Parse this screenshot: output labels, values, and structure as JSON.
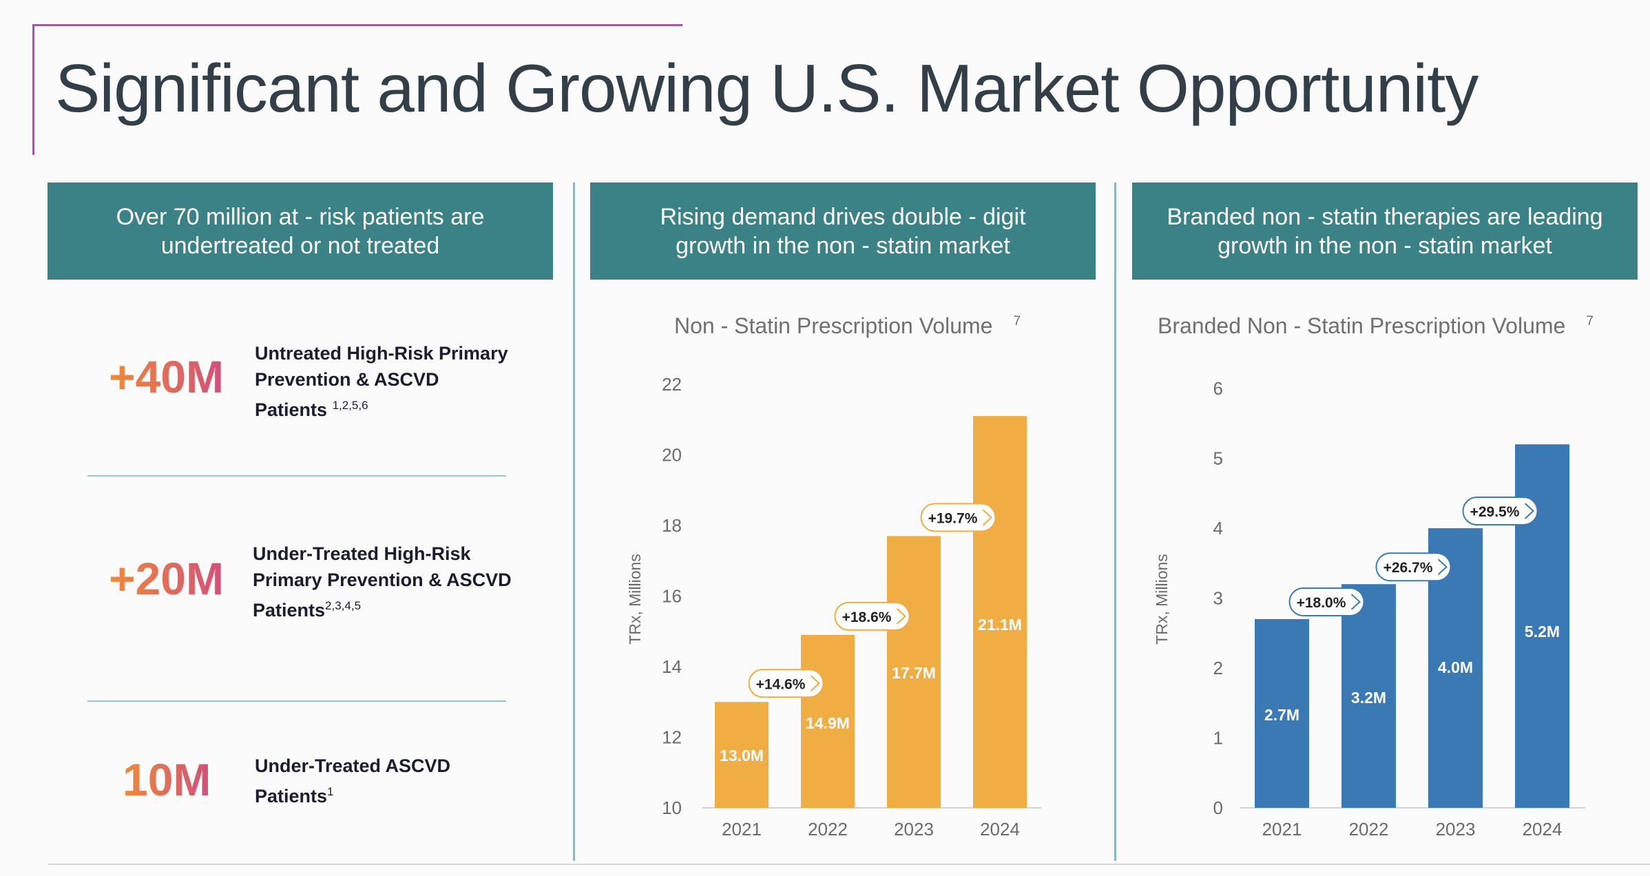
{
  "slide": {
    "title": "Significant and Growing U.S. Market Opportunity",
    "accent_color": "#c63ec4",
    "header_color": "#3b8287"
  },
  "panels": [
    {
      "header_line1": "Over 70 million at   - risk patients are",
      "header_line2": "undertreated or not treated"
    },
    {
      "header_line1": "Rising demand drives double     - digit",
      "header_line2": "growth in the non    - statin market"
    },
    {
      "header_line1": "Branded non  - statin therapies are leading",
      "header_line2": "growth in the non    - statin market"
    }
  ],
  "stats": [
    {
      "value": "+40M",
      "label": "Untreated High-Risk Primary Prevention & ASCVD Patients",
      "refs": "1,2,5,6"
    },
    {
      "value": "+20M",
      "label": "Under-Treated High-Risk Primary Prevention & ASCVD Patients",
      "refs": "2,3,4,5"
    },
    {
      "value": "10M",
      "label": "Under-Treated ASCVD Patients",
      "refs": "1"
    }
  ],
  "chart_data": [
    {
      "type": "bar",
      "title": "Non - Statin Prescription Volume",
      "title_ref": "7",
      "ylabel": "TRx, Millions",
      "categories": [
        "2021",
        "2022",
        "2023",
        "2024"
      ],
      "values": [
        13.0,
        14.9,
        17.7,
        21.1
      ],
      "data_labels": [
        "13.0M",
        "14.9M",
        "17.7M",
        "21.1M"
      ],
      "growth_labels": [
        "+14.6%",
        "+18.6%",
        "+19.7%"
      ],
      "ylim": [
        10,
        22
      ],
      "yticks": [
        "10",
        "12",
        "14",
        "16",
        "18",
        "20",
        "22"
      ],
      "color": "#f0ad43",
      "grid": false
    },
    {
      "type": "bar",
      "title": "Branded Non - Statin Prescription Volume",
      "title_ref": "7",
      "ylabel": "TRx, Millions",
      "categories": [
        "2021",
        "2022",
        "2023",
        "2024"
      ],
      "values": [
        2.7,
        3.2,
        4.0,
        5.2
      ],
      "data_labels": [
        "2.7M",
        "3.2M",
        "4.0M",
        "5.2M"
      ],
      "growth_labels": [
        "+18.0%",
        "+26.7%",
        "+29.5%"
      ],
      "ylim": [
        0,
        6
      ],
      "yticks": [
        "0",
        "1",
        "2",
        "3",
        "4",
        "5",
        "6"
      ],
      "color": "#3a79b4",
      "grid": false
    }
  ]
}
